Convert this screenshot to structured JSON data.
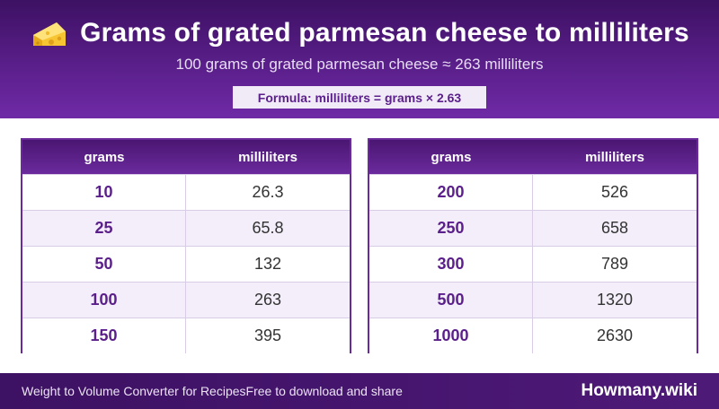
{
  "header": {
    "icon": "cheese-icon",
    "title": "Grams of grated parmesan cheese to milliliters",
    "subtitle": "100 grams of grated parmesan cheese ≈ 263 milliliters",
    "formula": "Formula: milliliters = grams × 2.63"
  },
  "tables": [
    {
      "columns": [
        "grams",
        "milliliters"
      ],
      "rows": [
        {
          "grams": "10",
          "ml": "26.3"
        },
        {
          "grams": "25",
          "ml": "65.8"
        },
        {
          "grams": "50",
          "ml": "132"
        },
        {
          "grams": "100",
          "ml": "263"
        },
        {
          "grams": "150",
          "ml": "395"
        }
      ]
    },
    {
      "columns": [
        "grams",
        "milliliters"
      ],
      "rows": [
        {
          "grams": "200",
          "ml": "526"
        },
        {
          "grams": "250",
          "ml": "658"
        },
        {
          "grams": "300",
          "ml": "789"
        },
        {
          "grams": "500",
          "ml": "1320"
        },
        {
          "grams": "1000",
          "ml": "2630"
        }
      ]
    }
  ],
  "footer": {
    "left_text": "Weight to Volume Converter for Recipes",
    "tagline": "Free to download and share",
    "brand": "Howmany.wiki"
  },
  "colors": {
    "primary": "#5a1f8a",
    "header_dark": "#3d1163",
    "row_alt": "#f3eef9"
  }
}
